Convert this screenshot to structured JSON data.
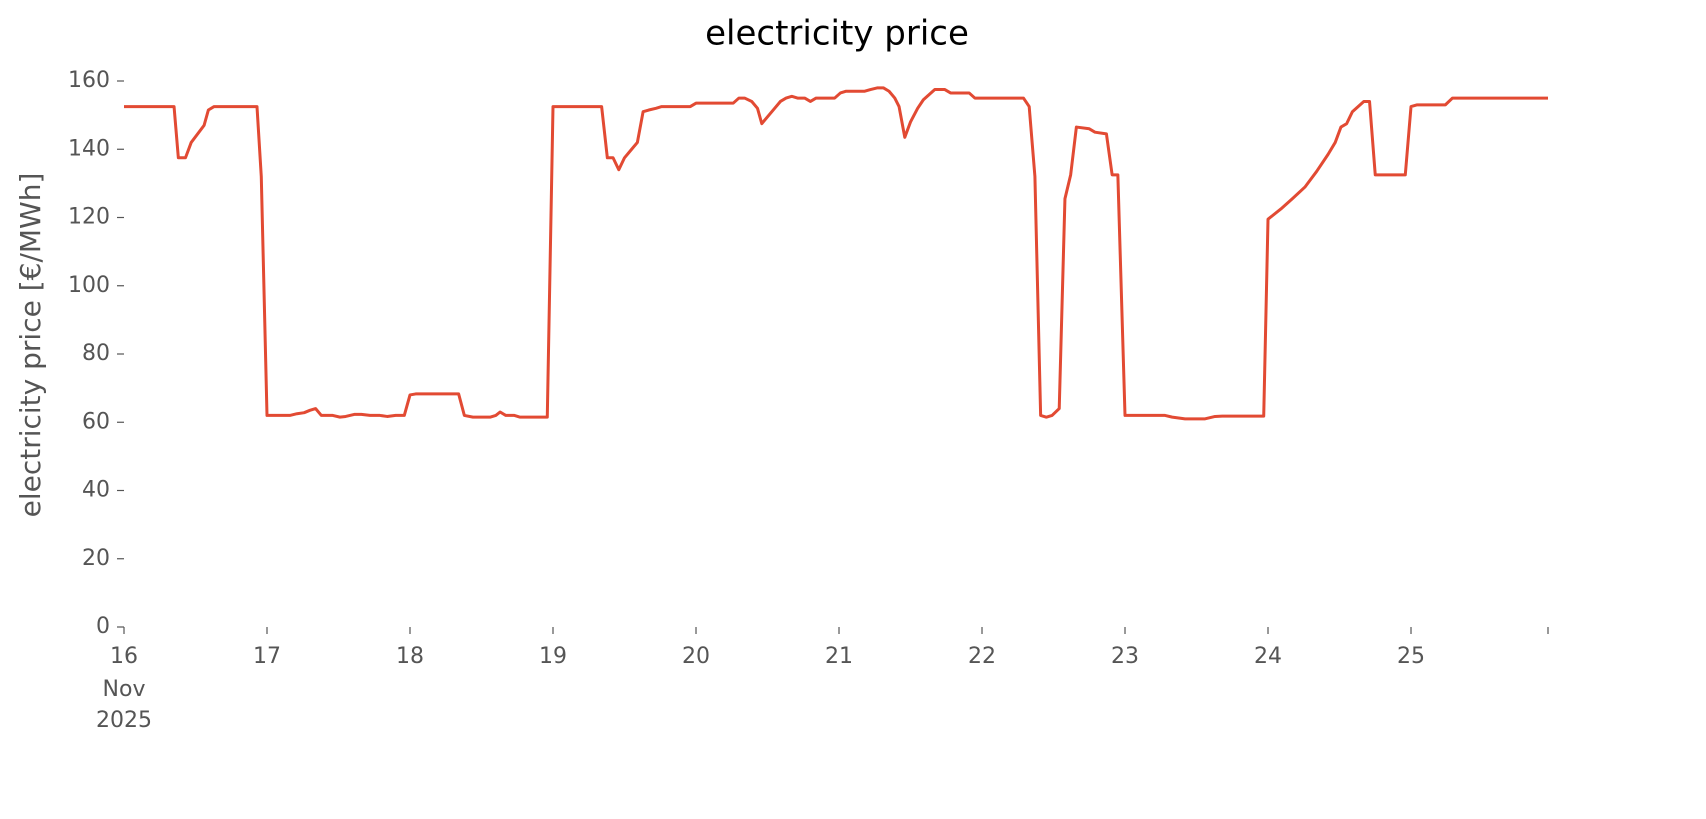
{
  "chart_data": {
    "type": "line",
    "title": "electricity price",
    "ylabel": "electricity price [€/MWh]",
    "xlim": [
      16,
      25.958
    ],
    "ylim": [
      0,
      160
    ],
    "xticks": [
      16,
      17,
      18,
      19,
      20,
      21,
      22,
      23,
      24,
      25
    ],
    "xtick_sublabels": [
      "Nov",
      "2025"
    ],
    "yticks": [
      0,
      20,
      40,
      60,
      80,
      100,
      120,
      140,
      160
    ],
    "grid": false,
    "series": [
      {
        "name": "electricity price",
        "color": "#e24a33",
        "x": [
          16,
          16.35,
          16.38,
          16.43,
          16.47,
          16.56,
          16.59,
          16.63,
          16.93,
          16.96,
          17.0,
          17.16,
          17.21,
          17.26,
          17.3,
          17.34,
          17.38,
          17.46,
          17.51,
          17.55,
          17.61,
          17.66,
          17.72,
          17.79,
          17.84,
          17.9,
          17.96,
          18.0,
          18.04,
          18.34,
          18.38,
          18.44,
          18.56,
          18.6,
          18.63,
          18.67,
          18.73,
          18.77,
          18.96,
          19.0,
          19.34,
          19.38,
          19.42,
          19.46,
          19.5,
          19.55,
          19.59,
          19.63,
          19.67,
          19.72,
          19.76,
          19.96,
          20.0,
          20.26,
          20.3,
          20.34,
          20.39,
          20.43,
          20.46,
          20.5,
          20.55,
          20.59,
          20.63,
          20.67,
          20.71,
          20.76,
          20.8,
          20.84,
          20.97,
          21.01,
          21.05,
          21.18,
          21.22,
          21.27,
          21.31,
          21.35,
          21.39,
          21.42,
          21.46,
          21.5,
          21.55,
          21.59,
          21.63,
          21.67,
          21.74,
          21.78,
          21.91,
          21.95,
          22.29,
          22.33,
          22.37,
          22.41,
          22.45,
          22.49,
          22.54,
          22.58,
          22.62,
          22.66,
          22.75,
          22.79,
          22.87,
          22.91,
          22.95,
          23.0,
          23.28,
          23.33,
          23.42,
          23.56,
          23.63,
          23.68,
          23.97,
          24.0,
          24.09,
          24.17,
          24.26,
          24.34,
          24.42,
          24.47,
          24.51,
          24.55,
          24.59,
          24.63,
          24.67,
          24.71,
          24.75,
          24.96,
          25.0,
          25.04,
          25.24,
          25.29,
          25.958
        ],
        "values": [
          152.5,
          152.5,
          137.5,
          137.5,
          142,
          147,
          151.5,
          152.5,
          152.5,
          132,
          62,
          62,
          62.5,
          62.8,
          63.5,
          64,
          62,
          62,
          61.5,
          61.7,
          62.3,
          62.3,
          62,
          62,
          61.7,
          62,
          62,
          68,
          68.3,
          68.3,
          62,
          61.5,
          61.5,
          62,
          63,
          62,
          62,
          61.5,
          61.5,
          152.5,
          152.5,
          137.5,
          137.5,
          134,
          137.5,
          140,
          142,
          151,
          151.5,
          152,
          152.5,
          152.5,
          153.5,
          153.5,
          155,
          155,
          154,
          152,
          147.5,
          149.5,
          152,
          154,
          155,
          155.5,
          155,
          155,
          154,
          155,
          155,
          156.5,
          157,
          157,
          157.5,
          158,
          158,
          157,
          155,
          152.5,
          143.5,
          148,
          152,
          154.5,
          156,
          157.5,
          157.5,
          156.5,
          156.5,
          155,
          155,
          152.5,
          132,
          62,
          61.5,
          62,
          64,
          125.5,
          132.5,
          146.5,
          146,
          145,
          144.5,
          132.5,
          132.5,
          62,
          62,
          61.5,
          61,
          61,
          61.7,
          61.8,
          61.8,
          119.5,
          122.5,
          125.5,
          129,
          133.5,
          138.5,
          142,
          146.5,
          147.5,
          151,
          152.5,
          154,
          154,
          132.5,
          132.5,
          152.5,
          153,
          153,
          155,
          155
        ]
      }
    ]
  }
}
